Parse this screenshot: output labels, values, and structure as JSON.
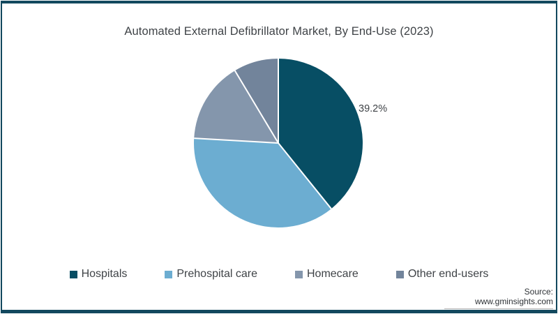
{
  "chart_data": {
    "type": "pie",
    "title": "Automated External Defibrillator Market, By End-Use (2023)",
    "legend_position": "bottom",
    "direction": "clockwise",
    "start_angle_deg": 0,
    "slice_separator_color": "#ffffff",
    "slices": [
      {
        "label": "Hospitals",
        "value": 39.2,
        "color": "#074e64",
        "data_label": "39.2%"
      },
      {
        "label": "Prehospital care",
        "value": 36.7,
        "color": "#6cadd1",
        "data_label": ""
      },
      {
        "label": "Homecare",
        "value": 15.5,
        "color": "#8496ac",
        "data_label": ""
      },
      {
        "label": "Other end-users",
        "value": 8.6,
        "color": "#72849b",
        "data_label": ""
      }
    ]
  },
  "frame": {
    "border_color": "#12485e"
  },
  "source": {
    "label": "Source: www.gminsights.com"
  }
}
